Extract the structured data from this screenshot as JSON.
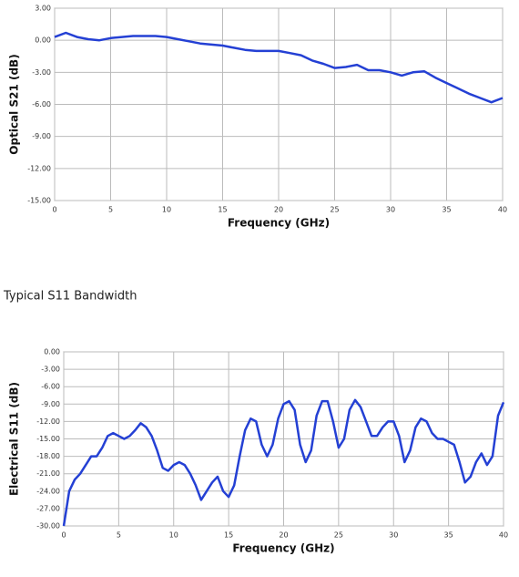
{
  "chart_data": [
    {
      "type": "line",
      "xlabel": "Frequency (GHz)",
      "ylabel": "Optical S21 (dB)",
      "color": "#2440d4",
      "grid": true,
      "x": [
        0,
        1,
        2,
        3,
        4,
        5,
        6,
        7,
        8,
        9,
        10,
        11,
        12,
        13,
        14,
        15,
        16,
        17,
        18,
        19,
        20,
        21,
        22,
        23,
        24,
        25,
        26,
        27,
        28,
        29,
        30,
        31,
        32,
        33,
        34,
        35,
        36,
        37,
        38,
        39,
        40
      ],
      "values": [
        0.3,
        0.7,
        0.3,
        0.1,
        0,
        0.2,
        0.3,
        0.4,
        0.4,
        0.4,
        0.3,
        0.1,
        -0.1,
        -0.3,
        -0.4,
        -0.5,
        -0.7,
        -0.9,
        -1,
        -1,
        -1,
        -1.2,
        -1.4,
        -1.9,
        -2.2,
        -2.6,
        -2.5,
        -2.3,
        -2.8,
        -2.8,
        -3,
        -3.3,
        -3,
        -2.9,
        -3.5,
        -4,
        -4.5,
        -5,
        -5.4,
        -5.8,
        -5.4
      ],
      "xlim": [
        0,
        40
      ],
      "xticks": [
        0,
        5,
        10,
        15,
        20,
        25,
        30,
        35,
        40
      ],
      "ylim": [
        -15,
        3
      ],
      "yticks": [
        {
          "value": 3,
          "label": "3.00"
        },
        {
          "value": 0,
          "label": "0.00"
        },
        {
          "value": -3,
          "label": "-3.00"
        },
        {
          "value": -6,
          "label": "-6.00"
        },
        {
          "value": -9,
          "label": "-9.00"
        },
        {
          "value": -12,
          "label": "-12.00"
        },
        {
          "value": -15,
          "label": "-15.00"
        }
      ]
    },
    {
      "type": "line",
      "xlabel": "Frequency (GHz)",
      "ylabel": "Electrical S11 (dB)",
      "color": "#2440d4",
      "grid": true,
      "x": [
        0,
        0.5,
        1,
        1.5,
        2,
        2.5,
        3,
        3.5,
        4,
        4.5,
        5,
        5.5,
        6,
        6.5,
        7,
        7.5,
        8,
        8.5,
        9,
        9.5,
        10,
        10.5,
        11,
        11.5,
        12,
        12.5,
        13,
        13.5,
        14,
        14.5,
        15,
        15.5,
        16,
        16.5,
        17,
        17.5,
        18,
        18.5,
        19,
        19.5,
        20,
        20.5,
        21,
        21.5,
        22,
        22.5,
        23,
        23.5,
        24,
        24.5,
        25,
        25.5,
        26,
        26.5,
        27,
        27.5,
        28,
        28.5,
        29,
        29.5,
        30,
        30.5,
        31,
        31.5,
        32,
        32.5,
        33,
        33.5,
        34,
        34.5,
        35,
        35.5,
        36,
        36.5,
        37,
        37.5,
        38,
        38.5,
        39,
        39.5,
        40
      ],
      "values": [
        -30,
        -24,
        -22,
        -21,
        -19.5,
        -18,
        -18,
        -16.5,
        -14.5,
        -14,
        -14.5,
        -15,
        -14.5,
        -13.5,
        -12.3,
        -13,
        -14.5,
        -17,
        -20,
        -20.5,
        -19.5,
        -19,
        -19.5,
        -21,
        -23,
        -25.5,
        -24,
        -22.5,
        -21.5,
        -24,
        -25,
        -23,
        -18,
        -13.5,
        -11.5,
        -12,
        -16,
        -18,
        -16,
        -11.5,
        -9,
        -8.5,
        -10,
        -16,
        -19,
        -17,
        -11,
        -8.5,
        -8.5,
        -12,
        -16.5,
        -15,
        -10,
        -8.3,
        -9.5,
        -12,
        -14.5,
        -14.5,
        -13,
        -12,
        -12,
        -14.5,
        -19,
        -17,
        -13,
        -11.5,
        -12,
        -14,
        -15,
        -15,
        -15.5,
        -16,
        -19,
        -22.5,
        -21.5,
        -19,
        -17.5,
        -19.5,
        -18,
        -11,
        -8.7
      ],
      "xlim": [
        0,
        40
      ],
      "xticks": [
        0,
        5,
        10,
        15,
        20,
        25,
        30,
        35,
        40
      ],
      "ylim": [
        -30,
        0
      ],
      "yticks": [
        {
          "value": 0,
          "label": "0.00"
        },
        {
          "value": -3,
          "label": "-3.00"
        },
        {
          "value": -6,
          "label": "-6.00"
        },
        {
          "value": -9,
          "label": "-9.00"
        },
        {
          "value": -12,
          "label": "-12.00"
        },
        {
          "value": -15,
          "label": "-15.00"
        },
        {
          "value": -18,
          "label": "-18.00"
        },
        {
          "value": -21,
          "label": "-21.00"
        },
        {
          "value": -24,
          "label": "-24.00"
        },
        {
          "value": -27,
          "label": "-27.00"
        },
        {
          "value": -30,
          "label": "-30.00"
        }
      ]
    }
  ],
  "heading": "Typical S11 Bandwidth"
}
